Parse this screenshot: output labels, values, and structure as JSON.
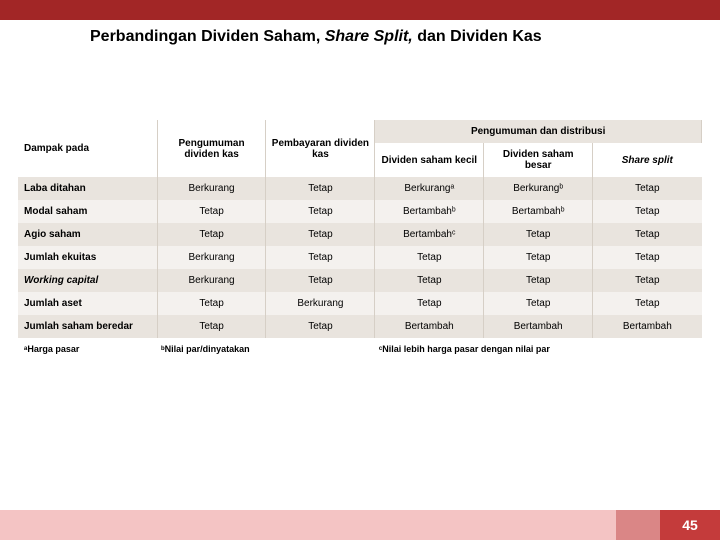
{
  "type": "table",
  "title_parts": {
    "a": "Perbandingan Dividen Saham, ",
    "b": "Share Split,",
    "c": " dan Dividen Kas"
  },
  "colors": {
    "accent": "#a22626",
    "stripe_dark": "#e9e4de",
    "stripe_light": "#f4f1ee",
    "footer_left": "#f4c4c4",
    "footer_mid": "#da8686",
    "footer_right": "#c43b3b",
    "text": "#000000"
  },
  "header": {
    "r0c0": "Dampak pada",
    "r0c1": "Pengumuman dividen kas",
    "r0c2": "Pembayaran dividen kas",
    "r0c3_merged": "Pengumuman dan distribusi",
    "r1c3": "Dividen saham kecil",
    "r1c4": "Dividen saham besar",
    "r1c5": "Share split"
  },
  "rows": [
    {
      "label": "Laba ditahan",
      "c1": "Berkurang",
      "c2": "Tetap",
      "c3": "Berkurangᵃ",
      "c4": "Berkurangᵇ",
      "c5": "Tetap"
    },
    {
      "label": "Modal saham",
      "c1": "Tetap",
      "c2": "Tetap",
      "c3": "Bertambahᵇ",
      "c4": "Bertambahᵇ",
      "c5": "Tetap"
    },
    {
      "label": "Agio saham",
      "c1": "Tetap",
      "c2": "Tetap",
      "c3": "Bertambahᶜ",
      "c4": "Tetap",
      "c5": "Tetap"
    },
    {
      "label": "Jumlah ekuitas",
      "c1": "Berkurang",
      "c2": "Tetap",
      "c3": "Tetap",
      "c4": "Tetap",
      "c5": "Tetap"
    },
    {
      "label": "Working capital",
      "italic": true,
      "c1": "Berkurang",
      "c2": "Tetap",
      "c3": "Tetap",
      "c4": "Tetap",
      "c5": "Tetap"
    },
    {
      "label": "Jumlah aset",
      "c1": "Tetap",
      "c2": "Berkurang",
      "c3": "Tetap",
      "c4": "Tetap",
      "c5": "Tetap"
    },
    {
      "label": "Jumlah saham beredar",
      "c1": "Tetap",
      "c2": "Tetap",
      "c3": "Bertambah",
      "c4": "Bertambah",
      "c5": "Bertambah"
    }
  ],
  "footnotes": {
    "a_prefix": "ᵃ",
    "a": "Harga pasar",
    "b_prefix": "ᵇ",
    "b": "Nilai par/dinyatakan",
    "c_prefix": "ᶜ",
    "c": "Nilai lebih harga pasar dengan nilai par"
  },
  "page_number": "45"
}
